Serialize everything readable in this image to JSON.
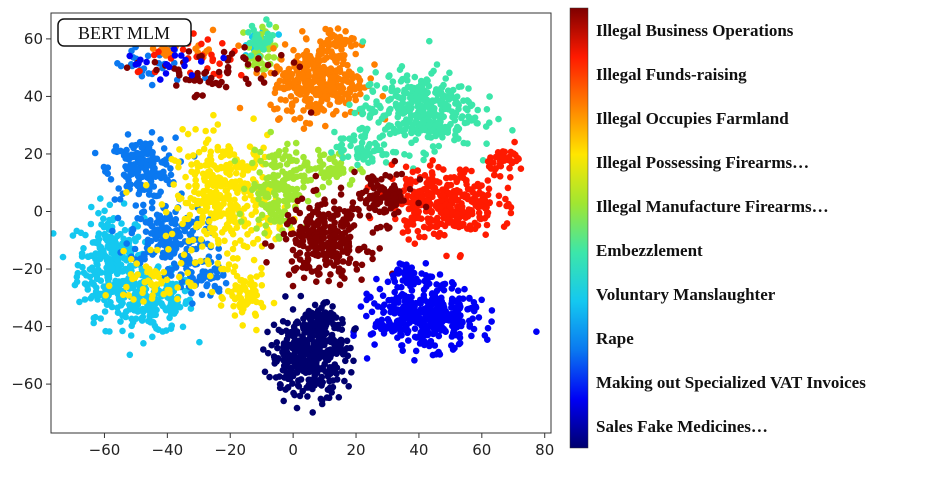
{
  "chart_data": {
    "type": "scatter",
    "title": "BERT MLM",
    "xlabel": "",
    "ylabel": "",
    "xlim": [
      -77,
      82
    ],
    "ylim": [
      -77,
      69
    ],
    "x_ticks": [
      -60,
      -40,
      -20,
      0,
      20,
      40,
      60,
      80
    ],
    "y_ticks": [
      60,
      40,
      20,
      0,
      -20,
      -40,
      -60
    ],
    "grid": false,
    "legend_position": "right",
    "series": [
      {
        "name": "Illegal Business Operations",
        "color": "#7f0000",
        "clusters": [
          {
            "cx": 10,
            "cy": -10,
            "sx": 9,
            "sy": 9,
            "n": 260
          },
          {
            "cx": 28,
            "cy": 5,
            "sx": 7,
            "sy": 6,
            "n": 90
          },
          {
            "cx": -25,
            "cy": 48,
            "sx": 16,
            "sy": 6,
            "n": 60
          }
        ]
      },
      {
        "name": "Illegal Funds-raising",
        "color": "#ff1a00",
        "clusters": [
          {
            "cx": 48,
            "cy": 3,
            "sx": 11,
            "sy": 8,
            "n": 320
          },
          {
            "cx": 68,
            "cy": 18,
            "sx": 4,
            "sy": 3,
            "n": 40
          },
          {
            "cx": -28,
            "cy": 52,
            "sx": 14,
            "sy": 5,
            "n": 30
          }
        ]
      },
      {
        "name": "Illegal Occupies Farmland",
        "color": "#ff7f00",
        "clusters": [
          {
            "cx": 8,
            "cy": 45,
            "sx": 10,
            "sy": 8,
            "n": 300
          },
          {
            "cx": 12,
            "cy": 58,
            "sx": 5,
            "sy": 4,
            "n": 60
          },
          {
            "cx": -35,
            "cy": 57,
            "sx": 8,
            "sy": 3,
            "n": 25
          }
        ]
      },
      {
        "name": "Illegal Possessing Firearms…",
        "color": "#ffe600",
        "clusters": [
          {
            "cx": -22,
            "cy": 5,
            "sx": 11,
            "sy": 14,
            "n": 360
          },
          {
            "cx": -15,
            "cy": -30,
            "sx": 4,
            "sy": 6,
            "n": 70
          },
          {
            "cx": -45,
            "cy": -25,
            "sx": 8,
            "sy": 6,
            "n": 50
          }
        ]
      },
      {
        "name": "Illegal Manufacture Firearms…",
        "color": "#a0e632",
        "clusters": [
          {
            "cx": -5,
            "cy": 8,
            "sx": 6,
            "sy": 10,
            "n": 160
          },
          {
            "cx": -10,
            "cy": 55,
            "sx": 3,
            "sy": 6,
            "n": 40
          },
          {
            "cx": 12,
            "cy": 15,
            "sx": 6,
            "sy": 4,
            "n": 50
          }
        ]
      },
      {
        "name": "Embezzlement",
        "color": "#3ce6aa",
        "clusters": [
          {
            "cx": 40,
            "cy": 35,
            "sx": 12,
            "sy": 9,
            "n": 340
          },
          {
            "cx": 22,
            "cy": 22,
            "sx": 6,
            "sy": 4,
            "n": 60
          },
          {
            "cx": -10,
            "cy": 60,
            "sx": 3,
            "sy": 4,
            "n": 30
          }
        ]
      },
      {
        "name": "Voluntary Manslaughter",
        "color": "#14c8f0",
        "clusters": [
          {
            "cx": -58,
            "cy": -18,
            "sx": 7,
            "sy": 12,
            "n": 260
          },
          {
            "cx": -45,
            "cy": -32,
            "sx": 9,
            "sy": 7,
            "n": 180
          },
          {
            "cx": -10,
            "cy": 60,
            "sx": 3,
            "sy": 3,
            "n": 25
          }
        ]
      },
      {
        "name": "Rape",
        "color": "#0a78f0",
        "clusters": [
          {
            "cx": -48,
            "cy": 15,
            "sx": 7,
            "sy": 7,
            "n": 170
          },
          {
            "cx": -40,
            "cy": -8,
            "sx": 8,
            "sy": 7,
            "n": 170
          },
          {
            "cx": -30,
            "cy": -22,
            "sx": 6,
            "sy": 6,
            "n": 70
          },
          {
            "cx": -45,
            "cy": 50,
            "sx": 10,
            "sy": 5,
            "n": 25
          }
        ]
      },
      {
        "name": "Making out Specialized VAT Invoices",
        "color": "#0000f5",
        "clusters": [
          {
            "cx": 42,
            "cy": -37,
            "sx": 11,
            "sy": 7,
            "n": 380
          },
          {
            "cx": 38,
            "cy": -22,
            "sx": 6,
            "sy": 3,
            "n": 50
          },
          {
            "cx": -40,
            "cy": 52,
            "sx": 10,
            "sy": 5,
            "n": 20
          }
        ]
      },
      {
        "name": "Sales Fake Medicines…",
        "color": "#00006e",
        "clusters": [
          {
            "cx": 5,
            "cy": -50,
            "sx": 8,
            "sy": 9,
            "n": 380
          },
          {
            "cx": 8,
            "cy": -38,
            "sx": 5,
            "sy": 4,
            "n": 60
          }
        ]
      }
    ]
  }
}
